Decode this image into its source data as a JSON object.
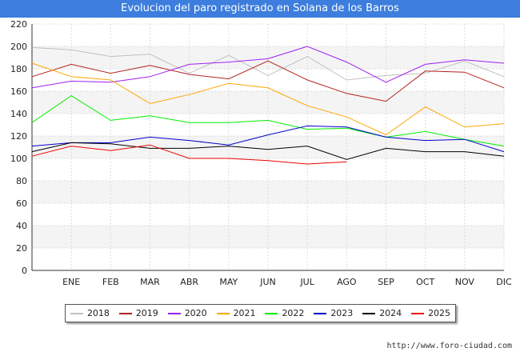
{
  "chart_data": {
    "type": "line",
    "title": "Evolucion del paro registrado en Solana de los Barros",
    "xlabel": "",
    "ylabel": "",
    "ylim": [
      0,
      220
    ],
    "yticks": [
      0,
      20,
      40,
      60,
      80,
      100,
      120,
      140,
      160,
      180,
      200,
      220
    ],
    "categories": [
      "",
      "ENE",
      "FEB",
      "MAR",
      "ABR",
      "MAY",
      "JUN",
      "JUL",
      "AGO",
      "SEP",
      "OCT",
      "NOV",
      "DIC"
    ],
    "series": [
      {
        "name": "2018",
        "color": "#c0c0c0",
        "values": [
          199,
          197,
          191,
          193,
          176,
          192,
          174,
          191,
          170,
          174,
          176,
          187,
          173
        ]
      },
      {
        "name": "2019",
        "color": "#b22222",
        "values": [
          173,
          184,
          176,
          183,
          175,
          171,
          187,
          170,
          158,
          151,
          178,
          177,
          163
        ]
      },
      {
        "name": "2020",
        "color": "#a020f0",
        "values": [
          163,
          169,
          168,
          173,
          184,
          186,
          189,
          200,
          186,
          168,
          184,
          188,
          185
        ]
      },
      {
        "name": "2021",
        "color": "#ffa500",
        "values": [
          185,
          173,
          170,
          149,
          157,
          167,
          163,
          147,
          137,
          121,
          146,
          128,
          131
        ]
      },
      {
        "name": "2022",
        "color": "#00ee00",
        "values": [
          132,
          156,
          134,
          138,
          132,
          132,
          134,
          126,
          127,
          119,
          124,
          117,
          111
        ]
      },
      {
        "name": "2023",
        "color": "#0000cd",
        "values": [
          111,
          114,
          114,
          119,
          116,
          112,
          121,
          129,
          128,
          119,
          116,
          117,
          106
        ]
      },
      {
        "name": "2024",
        "color": "#000000",
        "values": [
          106,
          114,
          113,
          109,
          109,
          111,
          108,
          111,
          99,
          109,
          106,
          106,
          102
        ]
      },
      {
        "name": "2025",
        "color": "#ee0000",
        "values": [
          102,
          111,
          107,
          112,
          100,
          100,
          98,
          95,
          97,
          null,
          null,
          null,
          null
        ]
      }
    ]
  },
  "footer": {
    "url": "http://www.foro-ciudad.com"
  }
}
